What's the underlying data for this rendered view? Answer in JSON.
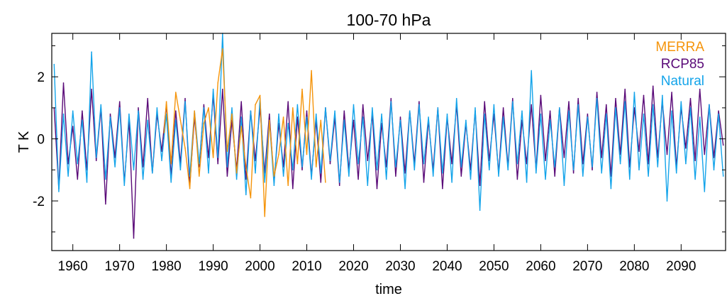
{
  "chart_data": {
    "type": "line",
    "title": "100-70 hPa",
    "xlabel": "time",
    "ylabel": "T K",
    "xlim": [
      1955.5,
      2099.5
    ],
    "ylim": [
      -3.6,
      3.4
    ],
    "xticks": [
      1960,
      1970,
      1980,
      1990,
      2000,
      2010,
      2020,
      2030,
      2040,
      2050,
      2060,
      2070,
      2080,
      2090
    ],
    "xtick_labels": [
      "1960",
      "1970",
      "1980",
      "1990",
      "2000",
      "2010",
      "2020",
      "2030",
      "2040",
      "2050",
      "2060",
      "2070",
      "2080",
      "2090"
    ],
    "yticks": [
      -2,
      0,
      2
    ],
    "ytick_labels": [
      "-2",
      "0",
      "2"
    ],
    "grid": false,
    "legend_position": "top-right",
    "series": [
      {
        "name": "RCP85",
        "color": "#5a0a78",
        "x": [
          1956,
          1957,
          1958,
          1959,
          1960,
          1961,
          1962,
          1963,
          1964,
          1965,
          1966,
          1967,
          1968,
          1969,
          1970,
          1971,
          1972,
          1973,
          1974,
          1975,
          1976,
          1977,
          1978,
          1979,
          1980,
          1981,
          1982,
          1983,
          1984,
          1985,
          1986,
          1987,
          1988,
          1989,
          1990,
          1991,
          1992,
          1993,
          1994,
          1995,
          1996,
          1997,
          1998,
          1999,
          2000,
          2001,
          2002,
          2003,
          2004,
          2005,
          2006,
          2007,
          2008,
          2009,
          2010,
          2011,
          2012,
          2013,
          2014,
          2015,
          2016,
          2017,
          2018,
          2019,
          2020,
          2021,
          2022,
          2023,
          2024,
          2025,
          2026,
          2027,
          2028,
          2029,
          2030,
          2031,
          2032,
          2033,
          2034,
          2035,
          2036,
          2037,
          2038,
          2039,
          2040,
          2041,
          2042,
          2043,
          2044,
          2045,
          2046,
          2047,
          2048,
          2049,
          2050,
          2051,
          2052,
          2053,
          2054,
          2055,
          2056,
          2057,
          2058,
          2059,
          2060,
          2061,
          2062,
          2063,
          2064,
          2065,
          2066,
          2067,
          2068,
          2069,
          2070,
          2071,
          2072,
          2073,
          2074,
          2075,
          2076,
          2077,
          2078,
          2079,
          2080,
          2081,
          2082,
          2083,
          2084,
          2085,
          2086,
          2087,
          2088,
          2089,
          2090,
          2091,
          2092,
          2093,
          2094,
          2095,
          2096,
          2097,
          2098,
          2099
        ],
        "values": [
          1.0,
          -1.6,
          1.8,
          -0.8,
          0.4,
          -1.3,
          0.9,
          -1.0,
          1.6,
          -0.7,
          1.0,
          -2.1,
          0.8,
          -0.6,
          1.2,
          -1.4,
          0.6,
          -3.2,
          1.0,
          -0.9,
          1.3,
          -1.1,
          0.8,
          -0.4,
          1.1,
          -1.2,
          0.9,
          -0.8,
          1.3,
          -1.5,
          0.7,
          -0.9,
          1.1,
          -0.6,
          1.4,
          -0.8,
          1.6,
          -1.2,
          0.6,
          -1.0,
          1.2,
          -1.3,
          0.9,
          -0.7,
          1.0,
          -1.1,
          0.8,
          -1.4,
          0.5,
          -0.9,
          1.2,
          -1.6,
          0.7,
          -1.0,
          0.9,
          -1.2,
          0.6,
          -1.4,
          1.0,
          -0.8,
          0.7,
          -1.5,
          0.9,
          -1.0,
          0.6,
          -1.3,
          1.1,
          -0.7,
          0.8,
          -1.6,
          0.5,
          -0.9,
          1.3,
          -1.2,
          0.7,
          -1.1,
          0.9,
          -0.8,
          1.2,
          -1.4,
          0.6,
          -1.0,
          1.0,
          -1.6,
          0.7,
          -0.8,
          1.1,
          -1.2,
          0.5,
          -1.0,
          0.9,
          -1.5,
          1.2,
          -0.7,
          0.8,
          -1.1,
          1.0,
          -0.9,
          1.3,
          -1.3,
          0.6,
          -0.8,
          1.1,
          -1.0,
          1.4,
          -0.7,
          0.9,
          -1.2,
          1.0,
          -0.6,
          1.2,
          -1.1,
          1.3,
          -0.8,
          0.8,
          -1.0,
          1.5,
          -0.6,
          1.1,
          -1.2,
          1.3,
          -0.5,
          1.6,
          -0.9,
          1.0,
          -0.4,
          1.4,
          -0.8,
          1.7,
          -0.6,
          1.2,
          -0.5,
          1.5,
          -0.9,
          1.0,
          -0.3,
          1.3,
          -0.7,
          1.6,
          -0.5,
          1.1,
          -0.6,
          0.9,
          -0.2
        ]
      },
      {
        "name": "Natural",
        "color": "#14a4ea",
        "x": [
          1956,
          1957,
          1958,
          1959,
          1960,
          1961,
          1962,
          1963,
          1964,
          1965,
          1966,
          1967,
          1968,
          1969,
          1970,
          1971,
          1972,
          1973,
          1974,
          1975,
          1976,
          1977,
          1978,
          1979,
          1980,
          1981,
          1982,
          1983,
          1984,
          1985,
          1986,
          1987,
          1988,
          1989,
          1990,
          1991,
          1992,
          1993,
          1994,
          1995,
          1996,
          1997,
          1998,
          1999,
          2000,
          2001,
          2002,
          2003,
          2004,
          2005,
          2006,
          2007,
          2008,
          2009,
          2010,
          2011,
          2012,
          2013,
          2014,
          2015,
          2016,
          2017,
          2018,
          2019,
          2020,
          2021,
          2022,
          2023,
          2024,
          2025,
          2026,
          2027,
          2028,
          2029,
          2030,
          2031,
          2032,
          2033,
          2034,
          2035,
          2036,
          2037,
          2038,
          2039,
          2040,
          2041,
          2042,
          2043,
          2044,
          2045,
          2046,
          2047,
          2048,
          2049,
          2050,
          2051,
          2052,
          2053,
          2054,
          2055,
          2056,
          2057,
          2058,
          2059,
          2060,
          2061,
          2062,
          2063,
          2064,
          2065,
          2066,
          2067,
          2068,
          2069,
          2070,
          2071,
          2072,
          2073,
          2074,
          2075,
          2076,
          2077,
          2078,
          2079,
          2080,
          2081,
          2082,
          2083,
          2084,
          2085,
          2086,
          2087,
          2088,
          2089,
          2090,
          2091,
          2092,
          2093,
          2094,
          2095,
          2096,
          2097,
          2098,
          2099
        ],
        "values": [
          2.4,
          -1.7,
          0.8,
          -1.2,
          0.9,
          -0.8,
          0.6,
          -1.4,
          2.8,
          -0.6,
          1.1,
          -1.3,
          0.7,
          -0.9,
          1.0,
          -1.5,
          0.8,
          -1.0,
          0.9,
          -1.3,
          0.6,
          -1.1,
          1.0,
          -0.7,
          0.8,
          -1.4,
          0.6,
          -1.0,
          1.2,
          -1.2,
          0.9,
          -0.8,
          1.0,
          -1.1,
          1.6,
          -0.6,
          3.4,
          -0.9,
          1.0,
          -1.3,
          0.7,
          -1.8,
          0.9,
          -1.1,
          1.3,
          -1.4,
          0.6,
          -1.5,
          0.8,
          -1.2,
          0.5,
          -1.0,
          1.1,
          -0.9,
          0.7,
          -1.3,
          0.8,
          -1.1,
          1.0,
          -0.7,
          0.9,
          -1.4,
          0.6,
          -1.2,
          1.1,
          -0.8,
          0.7,
          -1.5,
          1.0,
          -1.0,
          0.8,
          -1.3,
          1.2,
          -0.9,
          0.6,
          -1.6,
          0.9,
          -1.0,
          1.1,
          -0.8,
          0.7,
          -1.2,
          1.0,
          -1.1,
          0.8,
          -1.4,
          1.3,
          -0.9,
          0.6,
          -1.3,
          1.0,
          -2.3,
          0.8,
          -1.0,
          1.1,
          -1.2,
          0.7,
          -1.0,
          1.2,
          -0.8,
          0.9,
          -1.4,
          2.2,
          -1.1,
          0.8,
          -1.3,
          0.6,
          -0.9,
          1.0,
          -1.5,
          0.9,
          -1.0,
          1.1,
          -1.2,
          0.7,
          -0.9,
          1.3,
          -1.1,
          0.8,
          -1.6,
          1.0,
          -0.8,
          1.2,
          -1.3,
          1.5,
          -1.0,
          0.8,
          -1.2,
          1.1,
          -0.9,
          1.4,
          -2.0,
          0.9,
          -1.1,
          1.2,
          -0.8,
          1.0,
          -1.3,
          0.7,
          -1.7,
          1.1,
          -1.0,
          0.8,
          -1.2
        ]
      },
      {
        "name": "MERRA",
        "color": "#f5940a",
        "x": [
          1979.5,
          1980,
          1981,
          1982,
          1983,
          1984,
          1985,
          1986,
          1987,
          1988,
          1989,
          1990,
          1991,
          1992,
          1993,
          1994,
          1995,
          1996,
          1997,
          1998,
          1999,
          2000,
          2001,
          2002,
          2003,
          2004,
          2005,
          2006,
          2007,
          2008,
          2009,
          2010,
          2011,
          2012,
          2013,
          2014
        ],
        "values": [
          0.2,
          1.2,
          -0.8,
          1.5,
          0.6,
          -0.3,
          -1.6,
          0.9,
          -1.2,
          0.5,
          1.0,
          -0.6,
          1.8,
          2.9,
          -0.4,
          0.8,
          -1.1,
          0.4,
          -0.9,
          -1.9,
          1.1,
          1.4,
          -2.5,
          0.6,
          -1.2,
          -0.5,
          0.7,
          -1.5,
          1.0,
          -0.8,
          1.6,
          -0.5,
          2.2,
          -0.9,
          0.6,
          -1.4
        ]
      }
    ]
  }
}
